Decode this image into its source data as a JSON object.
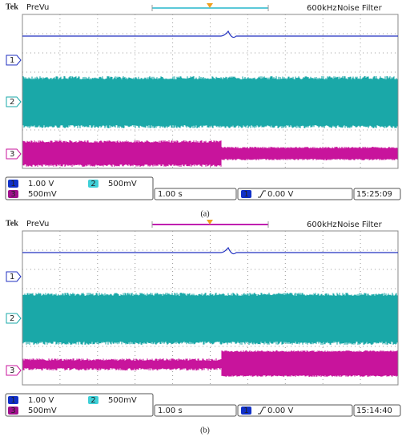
{
  "panels": [
    {
      "header": {
        "brand": "Tek",
        "mode": "PreVu",
        "bandwidth": "600kHz",
        "filter": "Noise Filter"
      },
      "channel_markers": [
        "1",
        "2",
        "3"
      ],
      "status": {
        "ch1": {
          "number": "1",
          "scale": "1.00 V"
        },
        "ch2": {
          "number": "2",
          "scale": "500mV"
        },
        "ch3": {
          "number": "3",
          "scale": "500mV"
        },
        "timebase": "1.00 s",
        "trigger": {
          "channel": "1",
          "level": "0.00 V"
        },
        "time": "15:25:09"
      },
      "caption": "(a)"
    },
    {
      "header": {
        "brand": "Tek",
        "mode": "PreVu",
        "bandwidth": "600kHz",
        "filter": "Noise Filter"
      },
      "channel_markers": [
        "1",
        "2",
        "3"
      ],
      "status": {
        "ch1": {
          "number": "1",
          "scale": "1.00 V"
        },
        "ch2": {
          "number": "2",
          "scale": "500mV"
        },
        "ch3": {
          "number": "3",
          "scale": "500mV"
        },
        "timebase": "1.00 s",
        "trigger": {
          "channel": "1",
          "level": "0.00 V"
        },
        "time": "15:14:40"
      },
      "caption": "(b)"
    }
  ]
}
